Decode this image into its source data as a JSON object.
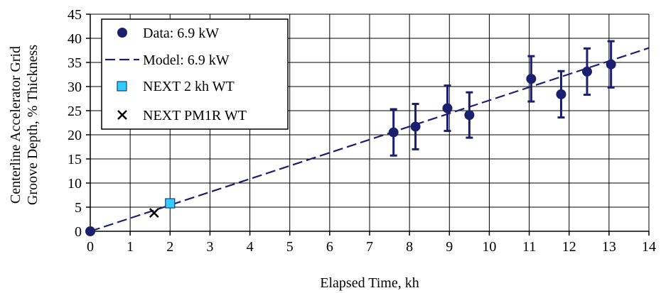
{
  "chart_data": {
    "type": "scatter",
    "title": "",
    "xlabel": "Elapsed Time, kh",
    "ylabel_lines": [
      "Centerline Accelerator Grid",
      "Groove Depth, % Thickness"
    ],
    "xlim": [
      0,
      14
    ],
    "ylim": [
      0,
      45
    ],
    "x_ticks": [
      0,
      1,
      2,
      3,
      4,
      5,
      6,
      7,
      8,
      9,
      10,
      11,
      12,
      13,
      14
    ],
    "y_ticks": [
      0,
      5,
      10,
      15,
      20,
      25,
      30,
      35,
      40,
      45
    ],
    "grid": true,
    "legend_position": "top-left",
    "colors": {
      "data": "#1a1f6e",
      "model": "#1a1f6e",
      "next2kh_fill": "#33ccff",
      "next2kh_edge": "#1a3a8a",
      "pm1r": "#000000"
    },
    "series": [
      {
        "name": "Data: 6.9 kW",
        "marker": "circle",
        "x": [
          0,
          7.6,
          8.15,
          8.95,
          9.5,
          11.05,
          11.8,
          12.45,
          13.05
        ],
        "y": [
          0,
          20.5,
          21.7,
          25.5,
          24.1,
          31.6,
          28.4,
          33.1,
          34.6
        ],
        "yerr": [
          0,
          4.8,
          4.7,
          4.7,
          4.7,
          4.7,
          4.8,
          4.8,
          4.8
        ]
      },
      {
        "name": "Model: 6.9 kW",
        "line": "dashed",
        "x": [
          0,
          14
        ],
        "y": [
          0,
          38
        ]
      },
      {
        "name": "NEXT 2 kh WT",
        "marker": "square",
        "x": [
          2.0
        ],
        "y": [
          5.8
        ]
      },
      {
        "name": "NEXT PM1R WT",
        "marker": "x",
        "x": [
          1.6
        ],
        "y": [
          3.8
        ]
      }
    ]
  }
}
